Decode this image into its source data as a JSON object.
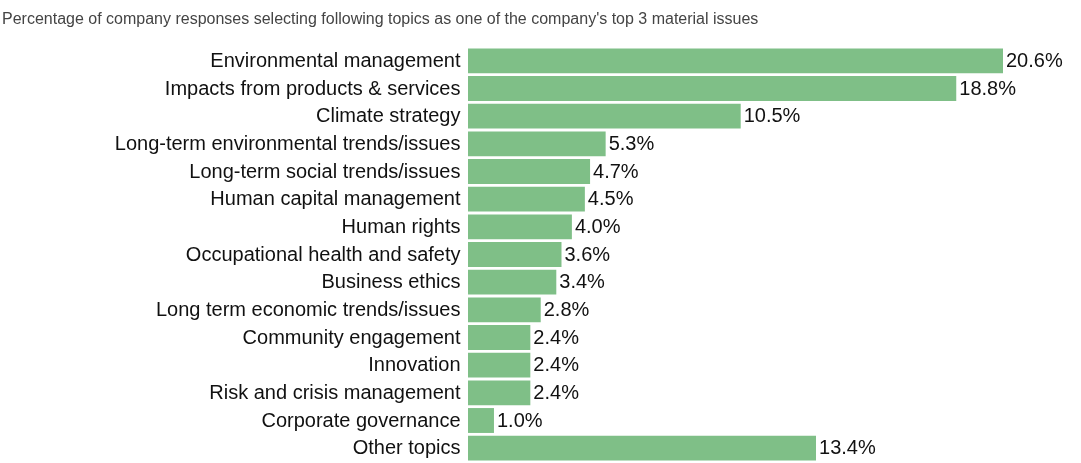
{
  "chart_data": {
    "type": "bar",
    "orientation": "horizontal",
    "title": "Percentage of company responses selecting following topics as one of the company's top 3 material issues",
    "categories": [
      "Environmental management",
      "Impacts from products & services",
      "Climate strategy",
      "Long-term environmental trends/issues",
      "Long-term social trends/issues",
      "Human capital management",
      "Human rights",
      "Occupational health and safety",
      "Business ethics",
      "Long term economic trends/issues",
      "Community engagement",
      "Innovation",
      "Risk and crisis management",
      "Corporate governance",
      "Other topics"
    ],
    "values": [
      20.6,
      18.8,
      10.5,
      5.3,
      4.7,
      4.5,
      4.0,
      3.6,
      3.4,
      2.8,
      2.4,
      2.4,
      2.4,
      1.0,
      13.4
    ],
    "value_labels": [
      "20.6%",
      "18.8%",
      "10.5%",
      "5.3%",
      "4.7%",
      "4.5%",
      "4.0%",
      "3.6%",
      "3.4%",
      "2.8%",
      "2.4%",
      "2.4%",
      "2.4%",
      "1.0%",
      "13.4%"
    ],
    "color": "#7fbf87"
  }
}
